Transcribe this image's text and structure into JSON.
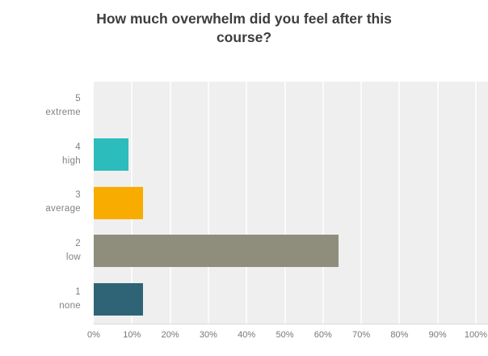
{
  "header": {
    "title_line1": "How much overwhelm did you feel after this",
    "title_line2": "course?"
  },
  "chart_data": {
    "type": "bar",
    "orientation": "horizontal",
    "title": "How much overwhelm did you feel after this course?",
    "categories": [
      "5 extreme",
      "4 high",
      "3 average",
      "2 low",
      "1 none"
    ],
    "rows": [
      {
        "rank": "5",
        "label": "extreme",
        "value": 0,
        "color": "#efefef"
      },
      {
        "rank": "4",
        "label": "high",
        "value": 9,
        "color": "#2cbcbc"
      },
      {
        "rank": "3",
        "label": "average",
        "value": 13,
        "color": "#f9ac00"
      },
      {
        "rank": "2",
        "label": "low",
        "value": 64,
        "color": "#8f8e7d"
      },
      {
        "rank": "1",
        "label": "none",
        "value": 13,
        "color": "#2e6476"
      }
    ],
    "xlabel": "",
    "ylabel": "",
    "xlim": [
      0,
      100
    ],
    "xticks": [
      "0%",
      "10%",
      "20%",
      "30%",
      "40%",
      "50%",
      "60%",
      "70%",
      "80%",
      "90%",
      "100%"
    ],
    "grid": true,
    "legend": false,
    "plot_background": "#efefef",
    "gridline_color": "#fbfbfb",
    "title_color": "#3d3d3d",
    "label_color": "#818181"
  }
}
